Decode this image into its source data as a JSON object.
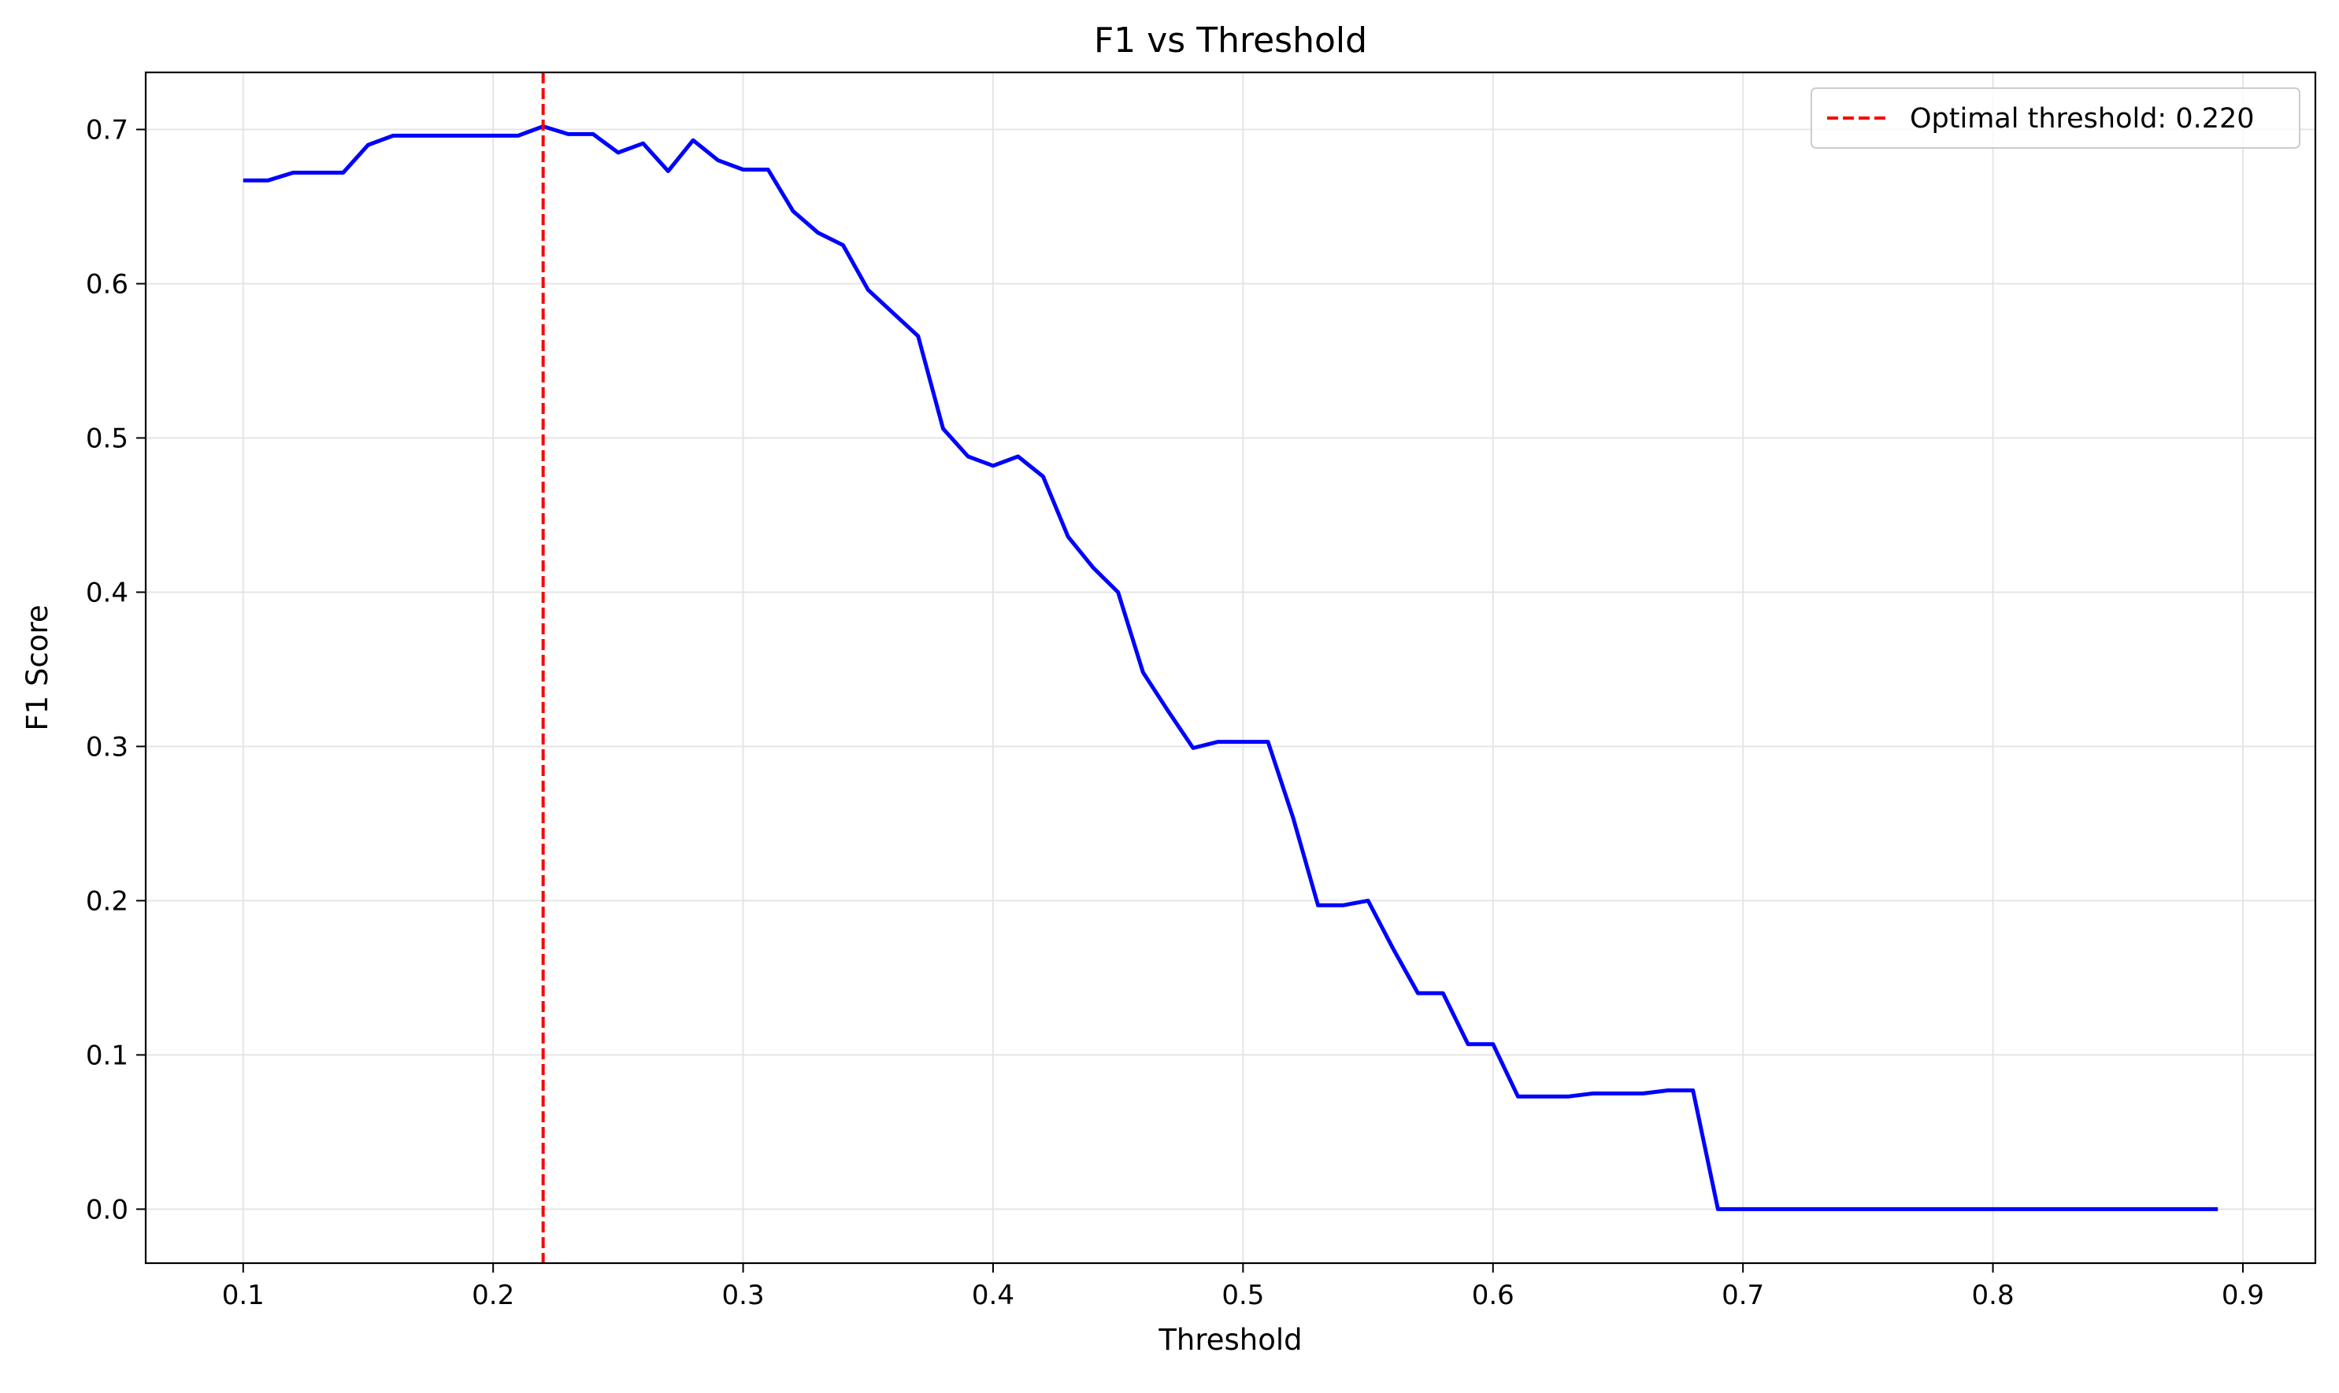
{
  "chart_data": {
    "type": "line",
    "title": "F1 vs Threshold",
    "xlabel": "Threshold",
    "ylabel": "F1 Score",
    "xlim": [
      0.061,
      0.929
    ],
    "ylim": [
      -0.035,
      0.737
    ],
    "xticks": [
      0.1,
      0.2,
      0.3,
      0.4,
      0.5,
      0.6,
      0.7,
      0.8,
      0.9
    ],
    "xtick_labels": [
      "0.1",
      "0.2",
      "0.3",
      "0.4",
      "0.5",
      "0.6",
      "0.7",
      "0.8",
      "0.9"
    ],
    "yticks": [
      0.0,
      0.1,
      0.2,
      0.3,
      0.4,
      0.5,
      0.6,
      0.7
    ],
    "ytick_labels": [
      "0.0",
      "0.1",
      "0.2",
      "0.3",
      "0.4",
      "0.5",
      "0.6",
      "0.7"
    ],
    "grid": true,
    "legend_position": "top-right",
    "series": [
      {
        "color": "#0000ff",
        "style": "solid",
        "x": [
          0.1,
          0.11,
          0.12,
          0.13,
          0.14,
          0.15,
          0.16,
          0.17,
          0.18,
          0.19,
          0.2,
          0.21,
          0.22,
          0.23,
          0.24,
          0.25,
          0.26,
          0.27,
          0.28,
          0.29,
          0.3,
          0.31,
          0.32,
          0.33,
          0.34,
          0.35,
          0.36,
          0.37,
          0.38,
          0.39,
          0.4,
          0.41,
          0.42,
          0.43,
          0.44,
          0.45,
          0.46,
          0.47,
          0.48,
          0.49,
          0.5,
          0.51,
          0.52,
          0.53,
          0.54,
          0.55,
          0.56,
          0.57,
          0.58,
          0.59,
          0.6,
          0.61,
          0.62,
          0.63,
          0.64,
          0.65,
          0.66,
          0.67,
          0.68,
          0.69,
          0.7,
          0.71,
          0.72,
          0.73,
          0.74,
          0.75,
          0.76,
          0.77,
          0.78,
          0.79,
          0.8,
          0.81,
          0.82,
          0.83,
          0.84,
          0.85,
          0.86,
          0.87,
          0.88,
          0.89
        ],
        "y": [
          0.667,
          0.667,
          0.672,
          0.672,
          0.672,
          0.69,
          0.696,
          0.696,
          0.696,
          0.696,
          0.696,
          0.696,
          0.702,
          0.697,
          0.697,
          0.685,
          0.691,
          0.673,
          0.693,
          0.68,
          0.674,
          0.674,
          0.647,
          0.633,
          0.625,
          0.596,
          0.581,
          0.566,
          0.506,
          0.488,
          0.482,
          0.488,
          0.475,
          0.436,
          0.416,
          0.4,
          0.348,
          0.323,
          0.299,
          0.303,
          0.303,
          0.303,
          0.254,
          0.197,
          0.197,
          0.2,
          0.169,
          0.14,
          0.14,
          0.107,
          0.107,
          0.073,
          0.073,
          0.073,
          0.075,
          0.075,
          0.075,
          0.077,
          0.077,
          0.0,
          0.0,
          0.0,
          0.0,
          0.0,
          0.0,
          0.0,
          0.0,
          0.0,
          0.0,
          0.0,
          0.0,
          0.0,
          0.0,
          0.0,
          0.0,
          0.0,
          0.0,
          0.0,
          0.0,
          0.0
        ]
      }
    ],
    "vlines": [
      {
        "name": "Optimal threshold: 0.220",
        "x": 0.22,
        "color": "#ff0000",
        "style": "dashed"
      }
    ],
    "legend": [
      {
        "label": "Optimal threshold: 0.220",
        "color": "#ff0000",
        "style": "dashed"
      }
    ]
  }
}
